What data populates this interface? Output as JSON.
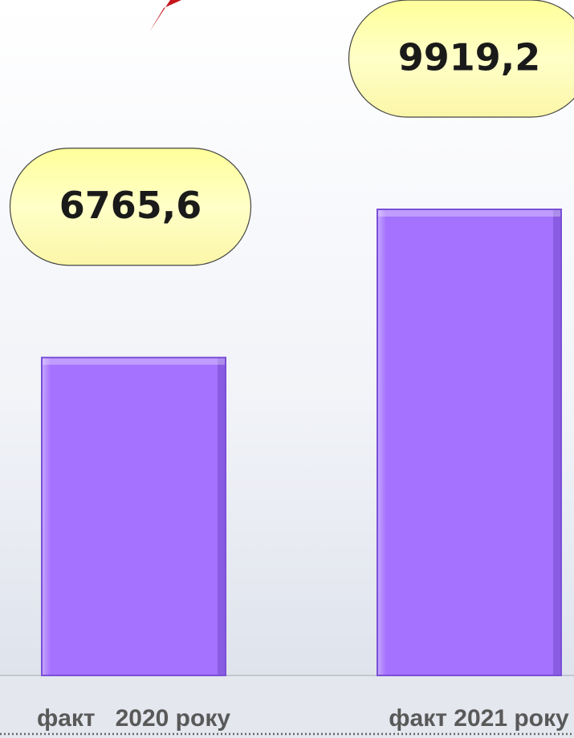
{
  "chart_data": {
    "type": "bar",
    "categories": [
      "факт   2020 року",
      "факт 2021 року"
    ],
    "values": [
      6765.6,
      9919.2
    ],
    "value_labels": [
      "6765,6",
      "9919,2"
    ],
    "color": "#a472ff"
  }
}
